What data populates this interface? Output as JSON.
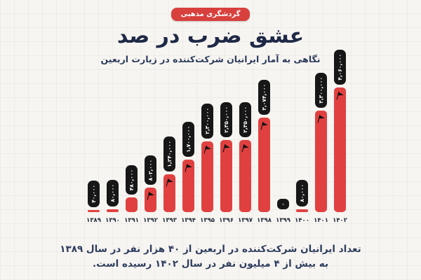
{
  "page": {
    "background": "#f7f5f1",
    "accent_red": "#d8403d",
    "bar_red": "#e04140",
    "pill_black": "#171717",
    "navy": "#1f2947"
  },
  "header": {
    "badge": "گردشگری مذهبی",
    "title": "عشق ضرب در صد",
    "subtitle": "نگاهی به آمار ایرانیان شرکت‌کننده در زیارت اربعین"
  },
  "chart_data": {
    "type": "bar",
    "title": "عشق ضرب در صد",
    "subtitle": "نگاهی به آمار ایرانیان شرکت‌کننده در زیارت اربعین",
    "categories": [
      "۱۳۸۹",
      "۱۳۹۰",
      "۱۳۹۱",
      "۱۳۹۲",
      "۱۳۹۳",
      "۱۳۹۴",
      "۱۳۹۵",
      "۱۳۹۶",
      "۱۳۹۷",
      "۱۳۹۸",
      "۱۳۹۹",
      "۱۴۰۰",
      "۱۴۰۱",
      "۱۴۰۲"
    ],
    "values": [
      40000,
      80000,
      480000,
      802000,
      1240000,
      1700000,
      2300000,
      2350000,
      2350000,
      3074000,
      0,
      80000,
      3300000,
      4060000
    ],
    "value_labels": [
      "۴۰,۰۰۰",
      "۸۰,۰۰۰",
      "۴۸۰,۰۰۰",
      "۸۰۲,۰۰۰",
      "۱,۲۴۰,۰۰۰",
      "۱,۷۰۰,۰۰۰",
      "۲,۳۰۰,۰۰۰",
      "۲,۳۵۰,۰۰۰",
      "۲,۳۵۰,۰۰۰",
      "۳,۰۷۴,۰۰۰",
      "۰",
      "۸۰,۰۰۰",
      "۳,۳۰۰,۰۰۰",
      "۴,۰۶۰,۰۰۰"
    ],
    "xlabel": "",
    "ylabel": "تعداد ایرانیان شرکت‌کننده در اربعین",
    "ylim": [
      0,
      4060000
    ],
    "grid": "faint-paper-grid",
    "legend": "none",
    "bar_color": "#e04140",
    "label_style": "black-pill-rotated",
    "marker_icon": "black-flag"
  },
  "footer": {
    "line1": "تعداد ایرانیان شرکت‌کننده در اربعین از ۴۰ هزار نفر در سال ۱۳۸۹",
    "line2": "به بیش از ۴ میلیون نفر در سال ۱۴۰۲ رسیده است."
  }
}
